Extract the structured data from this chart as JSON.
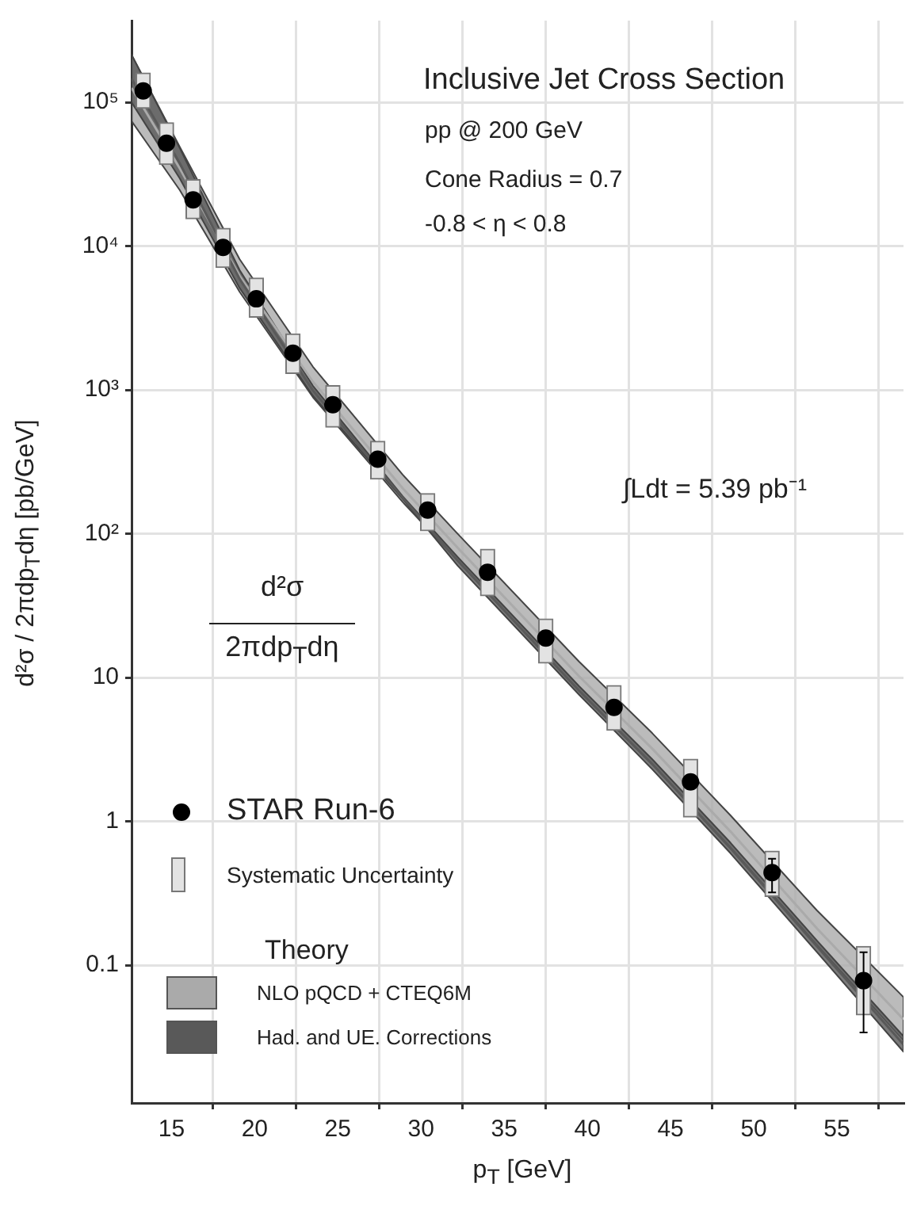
{
  "chart_data": {
    "type": "scatter",
    "title": "Inclusive Jet Cross Section",
    "xlabel": "p$_{T}$ [GeV]",
    "ylabel": "d²σ / 2πdp$_{T}$dη [pb/GeV]",
    "legend_title": "Theory",
    "annotations": [
      "pp @ 200 GeV",
      "Cone Radius = 0.7",
      "-0.8 < η < 0.8",
      "∫Ldt = 5.39 pb⁻¹",
      "d²σ",
      "2πdp$_{T}$dη"
    ],
    "x": [
      13.3,
      14.7,
      16.3,
      18.1,
      20.1,
      22.3,
      24.7,
      27.4,
      30.4,
      34,
      37.5,
      41.6,
      46.2,
      51.1,
      56.6
    ],
    "series": [
      {
        "name": "STAR Run-6",
        "color": "#000000",
        "marker": "circle",
        "values": [
          120000,
          52000,
          21000,
          9800,
          4300,
          1800,
          790,
          330,
          146,
          54,
          18.8,
          6.2,
          1.88,
          0.44,
          0.078
        ],
        "errors": [
          null,
          null,
          null,
          null,
          null,
          null,
          null,
          null,
          null,
          null,
          null,
          null,
          null,
          [
            0.32,
            0.55
          ],
          [
            0.034,
            0.123
          ]
        ]
      },
      {
        "name": "Systematic Uncertainty",
        "type": "bar",
        "color": "#e3e3e3",
        "base": [
          91000,
          37000,
          15500,
          7100,
          3200,
          1300,
          550,
          240,
          105,
          37,
          12.6,
          4.3,
          1.07,
          0.3,
          0.045
        ],
        "values": [
          69000,
          35000,
          13500,
          6200,
          2800,
          1150,
          520,
          200,
          85,
          41,
          12.9,
          4.5,
          1.63,
          0.32,
          0.09
        ]
      },
      {
        "name": "NLO pQCD + CTEQ6M",
        "type": "line",
        "color": "#aaaaaa",
        "x": [
          12.6,
          15.5,
          19.1,
          23.5,
          28.9,
          32.2,
          39.5,
          43.9,
          48.6,
          53.8,
          59
        ],
        "values": [
          126000,
          34700,
          6200,
          1140,
          207,
          80,
          10.2,
          3.2,
          0.85,
          0.18,
          0.042
        ],
        "lower": [
          74000,
          24500,
          4800,
          890,
          166,
          65,
          8.1,
          2.5,
          0.66,
          0.138,
          0.03
        ],
        "upper": [
          214000,
          49000,
          8100,
          1450,
          257,
          100,
          12.9,
          4.1,
          1.1,
          0.24,
          0.06
        ]
      },
      {
        "name": "Had. and UE. Corrections",
        "type": "line",
        "color": "#595959",
        "x": [
          12.6,
          15.5,
          19.1,
          23.5,
          28.9,
          32.2,
          39.5,
          43.9,
          48.6,
          53.8,
          59
        ],
        "values": [
          146000,
          37600,
          5900,
          990,
          178,
          65,
          8.1,
          2.5,
          0.65,
          0.135,
          0.028
        ],
        "lower": [
          100000,
          29500,
          5100,
          910,
          174,
          60,
          7.6,
          2.3,
          0.6,
          0.123,
          0.025
        ],
        "upper": [
          214000,
          47900,
          6800,
          1070,
          182,
          69,
          8.7,
          2.7,
          0.71,
          0.148,
          0.032
        ]
      }
    ],
    "xlim": [
      12.6,
      59
    ],
    "xticks": [
      15,
      20,
      25,
      30,
      35,
      40,
      45,
      50,
      55
    ],
    "ylim": [
      0.011,
      370000
    ],
    "yticks": [
      0.1,
      1,
      10,
      {
        "value": 100,
        "label": "10²"
      },
      {
        "value": 1000,
        "label": "10³"
      },
      {
        "value": 10000,
        "label": "10⁴"
      },
      {
        "value": 100000,
        "label": "10⁵"
      }
    ],
    "log": "y",
    "grid": true,
    "legend": "bottom left"
  }
}
